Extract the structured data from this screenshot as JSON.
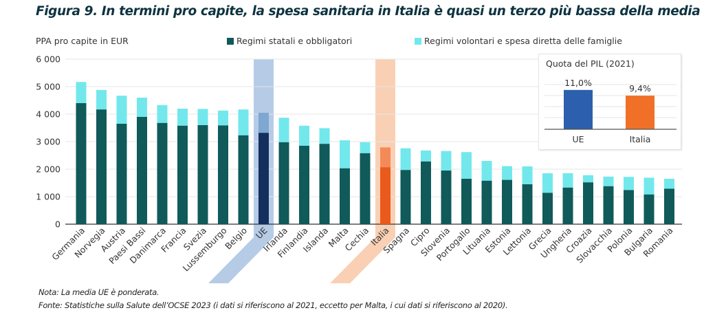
{
  "figure": {
    "title": "Figura 9. In termini pro capite, la spesa sanitaria in Italia è quasi un terzo più bassa della media UE",
    "note": "Nota: La media UE è ponderata.",
    "source": "Fonte: Statistiche sulla Salute dell’OCSE 2023 (i dati si riferiscono al 2021, eccetto per Malta, i cui dati si riferiscono al 2020)."
  },
  "colors": {
    "public": "#105a5a",
    "private": "#72e8ec",
    "eu_public": "#142f5e",
    "eu_private": "#7ea7d2",
    "eu_band": "#b6cbe6",
    "it_public": "#ea5a1d",
    "it_private": "#f48a58",
    "it_band": "#f9d0b4",
    "inset_eu": "#2c5fad",
    "inset_it": "#f07028",
    "grid": "#e6e6e6",
    "axis": "#333333"
  },
  "chart_data": [
    {
      "type": "bar",
      "stacked": true,
      "title": "Figura 9. In termini pro capite, la spesa sanitaria in Italia è quasi un terzo più bassa della media UE",
      "ylabel": "PPA pro capite in EUR",
      "xlabel": "",
      "ylim": [
        0,
        6000
      ],
      "yticks": [
        0,
        1000,
        2000,
        3000,
        4000,
        5000,
        6000
      ],
      "ytick_labels": [
        "0",
        "1 000",
        "2 000",
        "3 000",
        "4 000",
        "5 000",
        "6 000"
      ],
      "grid": true,
      "legend_position": "top",
      "highlight": [
        "UE",
        "Italia"
      ],
      "categories": [
        "Germania",
        "Norvegia",
        "Austria",
        "Paesi Bassi",
        "Danimarca",
        "Francia",
        "Svezia",
        "Lussemburgo",
        "Belgio",
        "UE",
        "Irlanda",
        "Finlandia",
        "Islanda",
        "Malta",
        "Cechia",
        "Italia",
        "Spagna",
        "Cipro",
        "Slovenia",
        "Portogallo",
        "Lituania",
        "Estonia",
        "Lettonia",
        "Grecia",
        "Ungheria",
        "Croazia",
        "Slovacchia",
        "Polonia",
        "Bulgaria",
        "Romania"
      ],
      "series": [
        {
          "name": "Regimi statali e obbligatori",
          "values": [
            4400,
            4170,
            3650,
            3900,
            3680,
            3580,
            3600,
            3590,
            3230,
            3320,
            2980,
            2850,
            2920,
            2030,
            2580,
            2070,
            1970,
            2280,
            1950,
            1650,
            1580,
            1610,
            1450,
            1140,
            1330,
            1520,
            1380,
            1240,
            1080,
            1290
          ]
        },
        {
          "name": "Regimi volontari e spesa diretta delle famiglie",
          "values": [
            770,
            710,
            1020,
            700,
            650,
            620,
            590,
            540,
            940,
            730,
            890,
            730,
            570,
            1020,
            400,
            720,
            790,
            400,
            710,
            970,
            720,
            500,
            650,
            710,
            520,
            260,
            350,
            480,
            610,
            360
          ]
        }
      ]
    },
    {
      "type": "bar",
      "title": "Quota del PIL (2021)",
      "categories": [
        "UE",
        "Italia"
      ],
      "values": [
        11.0,
        9.4
      ],
      "value_labels": [
        "11,0%",
        "9,4%"
      ],
      "unit": "%",
      "grid": true
    }
  ]
}
